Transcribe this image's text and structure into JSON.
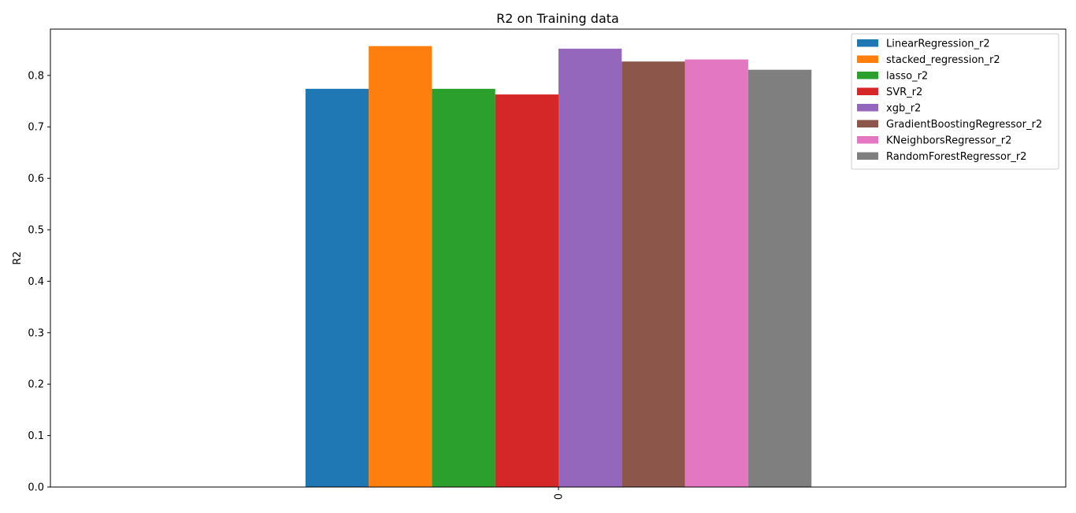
{
  "chart_data": {
    "type": "bar",
    "title": "R2 on Training data",
    "xlabel": "",
    "ylabel": "R2",
    "categories": [
      "0"
    ],
    "ylim": [
      0,
      0.89
    ],
    "yticks": [
      0.0,
      0.1,
      0.2,
      0.3,
      0.4,
      0.5,
      0.6,
      0.7,
      0.8
    ],
    "grid": false,
    "legend_position": "top-right",
    "series": [
      {
        "name": "LinearRegression_r2",
        "values": [
          0.774
        ],
        "color": "#1f77b4"
      },
      {
        "name": "stacked_regression_r2",
        "values": [
          0.857
        ],
        "color": "#ff7f0e"
      },
      {
        "name": "lasso_r2",
        "values": [
          0.774
        ],
        "color": "#2ca02c"
      },
      {
        "name": "SVR_r2",
        "values": [
          0.763
        ],
        "color": "#d62728"
      },
      {
        "name": "xgb_r2",
        "values": [
          0.852
        ],
        "color": "#9467bd"
      },
      {
        "name": "GradientBoostingRegressor_r2",
        "values": [
          0.827
        ],
        "color": "#8c564b"
      },
      {
        "name": "KNeighborsRegressor_r2",
        "values": [
          0.831
        ],
        "color": "#e377c2"
      },
      {
        "name": "RandomForestRegressor_r2",
        "values": [
          0.811
        ],
        "color": "#7f7f7f"
      }
    ]
  }
}
